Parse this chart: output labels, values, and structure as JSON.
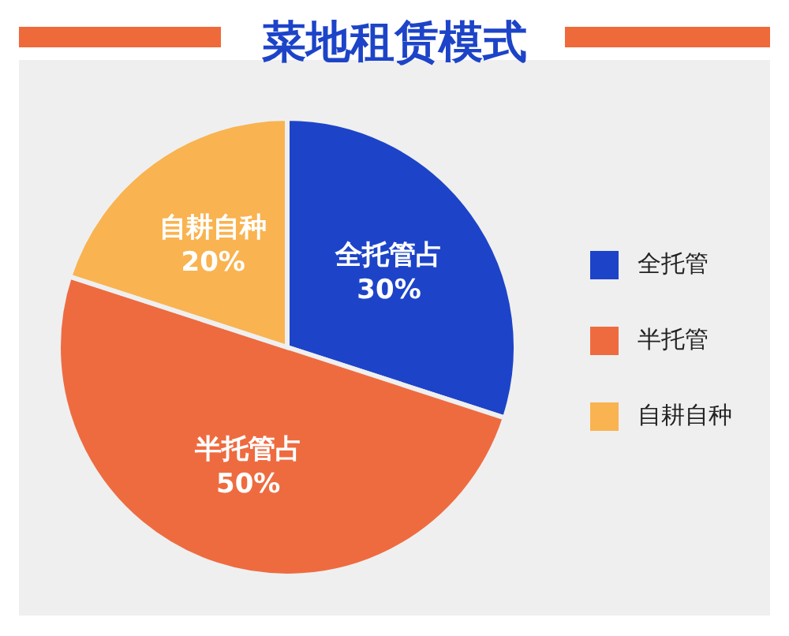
{
  "chart_data": {
    "type": "pie",
    "title": "菜地租赁模式",
    "categories": [
      "全托管",
      "半托管",
      "自耕自种"
    ],
    "values": [
      30,
      50,
      20
    ],
    "colors": [
      "#1d44c8",
      "#ee6b40",
      "#f9b350"
    ],
    "value_labels": [
      "全托管占\n30%",
      "半托管占\n50%",
      "自耕自种\n20%"
    ],
    "legend": "right"
  }
}
